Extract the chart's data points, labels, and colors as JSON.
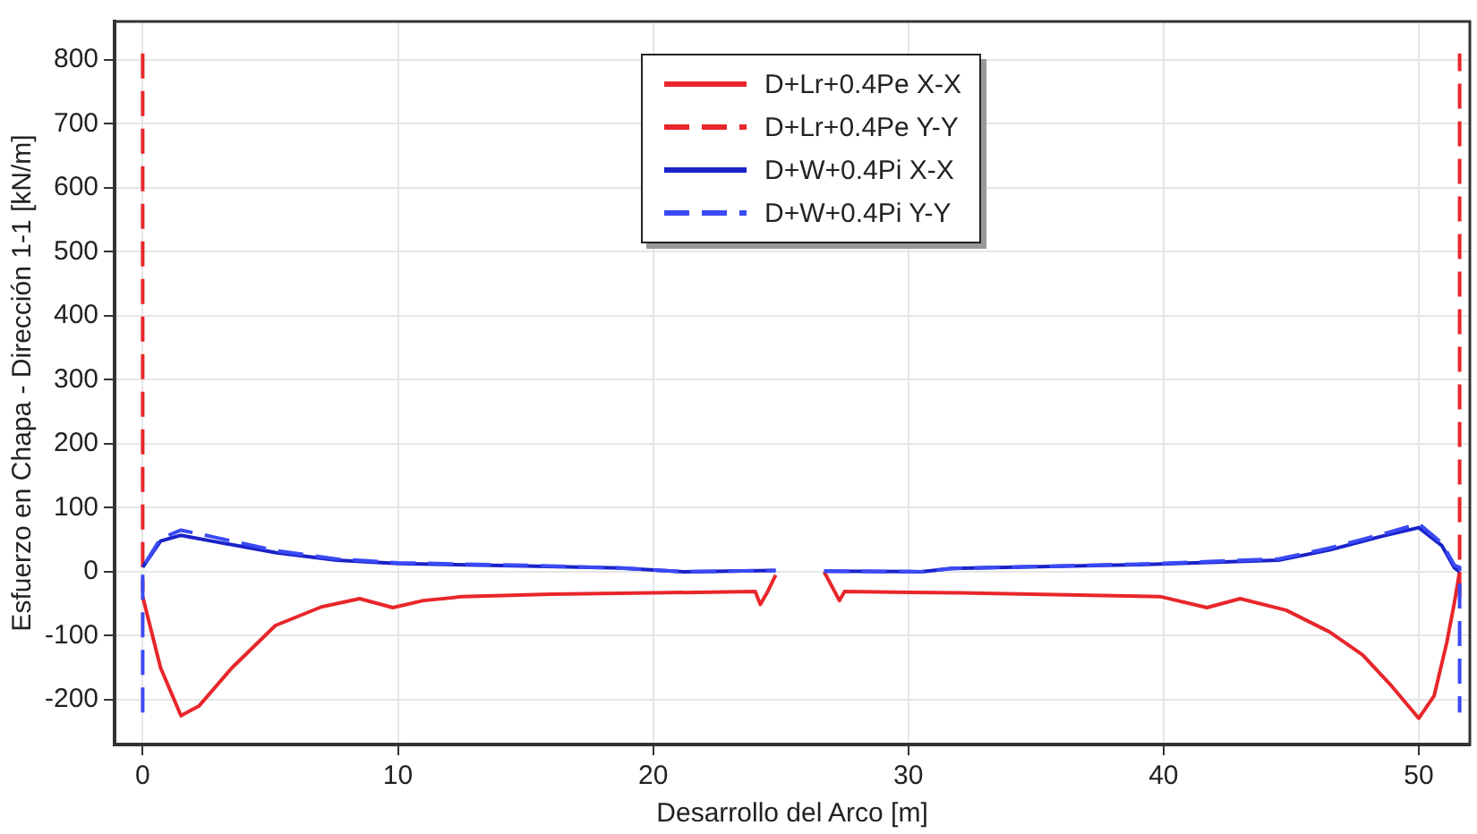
{
  "chart_data": {
    "type": "line",
    "xlabel": "Desarrollo del Arco [m]",
    "ylabel": "Esfuerzo en Chapa - Dirección 1-1 [kN/m]",
    "xlim": [
      -1.1,
      52
    ],
    "ylim": [
      -270,
      860
    ],
    "xticks": [
      0,
      10,
      20,
      30,
      40,
      50
    ],
    "yticks": [
      -200,
      -100,
      0,
      100,
      200,
      300,
      400,
      500,
      600,
      700,
      800
    ],
    "grid": true,
    "legend": "top",
    "marker": "none",
    "series": [
      {
        "name": "D+Lr+0.4Pe X-X",
        "color": "#e8262b",
        "line_style": "solid",
        "x": [
          0,
          0.7,
          1.5,
          2.2,
          3.5,
          5.2,
          7,
          8.5,
          9.8,
          11,
          12.5,
          16,
          20,
          24,
          24.2,
          24.5,
          24.8,
          25.7,
          26.7,
          27.3,
          27.5,
          32,
          39.9,
          41.7,
          43,
          44.8,
          46.5,
          47.8,
          48.9,
          50,
          50.6,
          51.1,
          51.4,
          51.6
        ],
        "values": [
          -39,
          -150,
          -225,
          -210,
          -150,
          -84,
          -55,
          -42,
          -56,
          -45,
          -39,
          -35,
          -33,
          -31,
          -51,
          -30,
          -5,
          null,
          0,
          -45,
          -31,
          -33,
          -39,
          -56,
          -42,
          -60,
          -94,
          -130,
          -177,
          -229,
          -194,
          -110,
          -47,
          0
        ]
      },
      {
        "name": "D+Lr+0.4Pe Y-Y",
        "color": "#e8262b",
        "line_style": "dashed",
        "x": [
          0,
          0,
          25.7,
          51.6,
          51.6
        ],
        "values": [
          810,
          -30,
          null,
          -40,
          810
        ]
      },
      {
        "name": "D+W+0.4Pi X-X",
        "color": "#1a22c8",
        "line_style": "solid",
        "x": [
          0,
          0.7,
          1.5,
          2.7,
          5.2,
          7.6,
          10,
          15,
          18.7,
          21.2,
          24.8,
          25.7,
          26.7,
          30.5,
          31.7,
          39.1,
          44.5,
          46.5,
          48.5,
          50,
          50.9,
          51.4,
          51.6
        ],
        "values": [
          7,
          48,
          57,
          48,
          30,
          18,
          13,
          9,
          6,
          0,
          2,
          null,
          1,
          0,
          5,
          11,
          18,
          34,
          55,
          69,
          41,
          6,
          0
        ]
      },
      {
        "name": "D+W+0.4Pi Y-Y",
        "color": "#3a4af5",
        "line_style": "dashed",
        "x": [
          0,
          0,
          0.7,
          1.5,
          2.7,
          5.2,
          7.6,
          10,
          15,
          18.7,
          21.2,
          24.8,
          25.7,
          26.7,
          30.5,
          31.7,
          39.1,
          44.5,
          46.5,
          48.5,
          50,
          50.9,
          51.4,
          51.6,
          51.6
        ],
        "values": [
          -220,
          7,
          52,
          65,
          55,
          33,
          20,
          14,
          10,
          6,
          0,
          2,
          null,
          1,
          0,
          5,
          12,
          20,
          37,
          58,
          75,
          45,
          10,
          7,
          -220
        ]
      }
    ]
  }
}
